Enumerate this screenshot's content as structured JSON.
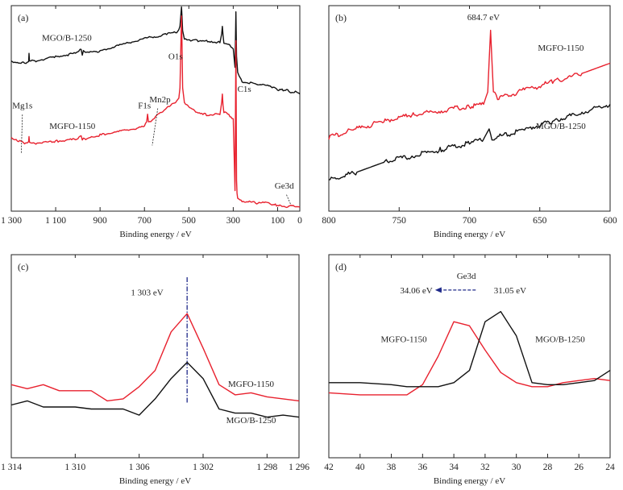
{
  "chart_data": [
    {
      "type": "line",
      "panel_label": "(a)",
      "xlabel": "Binding energy / eV",
      "ylabel": "",
      "xlim": [
        1300,
        0
      ],
      "xticks": [
        1300,
        1100,
        900,
        700,
        500,
        300,
        100,
        0
      ],
      "xtick_labels": [
        "1 300",
        "1 100",
        "900",
        "700",
        "500",
        "300",
        "100",
        "0"
      ],
      "ylim": [
        0,
        1
      ],
      "series": [
        {
          "name": "MGO/B-1250",
          "color": "#111111",
          "x": [
            1300,
            1240,
            1222,
            1220,
            1218,
            1200,
            1100,
            1000,
            985,
            980,
            975,
            960,
            900,
            800,
            700,
            600,
            560,
            545,
            540,
            533,
            531,
            528,
            520,
            480,
            420,
            360,
            352,
            349,
            346,
            342,
            320,
            300,
            292,
            288,
            285,
            283,
            280,
            260,
            200,
            150,
            120,
            90,
            60,
            40,
            20,
            0
          ],
          "y": [
            0.73,
            0.72,
            0.73,
            0.77,
            0.73,
            0.73,
            0.75,
            0.77,
            0.79,
            0.76,
            0.78,
            0.77,
            0.78,
            0.81,
            0.84,
            0.86,
            0.87,
            0.88,
            0.9,
            0.99,
            0.95,
            0.88,
            0.84,
            0.83,
            0.83,
            0.82,
            0.86,
            0.9,
            0.86,
            0.82,
            0.81,
            0.79,
            0.7,
            0.97,
            0.75,
            0.72,
            0.67,
            0.63,
            0.62,
            0.61,
            0.6,
            0.59,
            0.59,
            0.58,
            0.58,
            0.57
          ]
        },
        {
          "name": "MGFO-1150",
          "color": "#e8212e",
          "x": [
            1300,
            1240,
            1222,
            1220,
            1218,
            1200,
            1100,
            1000,
            985,
            980,
            975,
            960,
            900,
            800,
            700,
            690,
            686,
            682,
            660,
            640,
            600,
            560,
            545,
            540,
            533,
            531,
            528,
            520,
            480,
            420,
            360,
            352,
            349,
            346,
            342,
            320,
            300,
            292,
            288,
            285,
            283,
            280,
            260,
            200,
            150,
            120,
            90,
            60,
            40,
            20,
            0
          ],
          "y": [
            0.36,
            0.33,
            0.34,
            0.36,
            0.33,
            0.33,
            0.34,
            0.35,
            0.37,
            0.35,
            0.36,
            0.35,
            0.37,
            0.39,
            0.41,
            0.44,
            0.47,
            0.43,
            0.45,
            0.47,
            0.5,
            0.53,
            0.55,
            0.6,
            0.95,
            0.82,
            0.6,
            0.53,
            0.49,
            0.47,
            0.47,
            0.53,
            0.57,
            0.52,
            0.48,
            0.47,
            0.45,
            0.1,
            0.83,
            0.15,
            0.09,
            0.06,
            0.05,
            0.04,
            0.04,
            0.03,
            0.03,
            0.02,
            0.03,
            0.02,
            0.02
          ]
        }
      ],
      "annotations": [
        {
          "text": "MGO/B-1250",
          "x": 1050,
          "y": 0.83
        },
        {
          "text": "O1s",
          "x": 560,
          "y": 0.74
        },
        {
          "text": "C1s",
          "x": 250,
          "y": 0.58
        },
        {
          "text": "Mg1s",
          "x": 1250,
          "y": 0.5
        },
        {
          "text": "F1s",
          "x": 700,
          "y": 0.5
        },
        {
          "text": "Mn2p",
          "x": 630,
          "y": 0.53
        },
        {
          "text": "MGFO-1150",
          "x": 1025,
          "y": 0.4
        },
        {
          "text": "Ge3d",
          "x": 70,
          "y": 0.11
        }
      ]
    },
    {
      "type": "line",
      "panel_label": "(b)",
      "xlabel": "Binding energy / eV",
      "ylabel": "",
      "xlim": [
        800,
        600
      ],
      "xticks": [
        800,
        750,
        700,
        650,
        600
      ],
      "xtick_labels": [
        "800",
        "750",
        "700",
        "650",
        "600"
      ],
      "ylim": [
        0,
        1
      ],
      "series": [
        {
          "name": "MGFO-1150",
          "color": "#e8212e",
          "x": [
            800,
            780,
            760,
            740,
            720,
            700,
            690,
            687,
            685,
            683,
            680,
            660,
            640,
            620,
            600
          ],
          "y": [
            0.36,
            0.4,
            0.44,
            0.47,
            0.49,
            0.51,
            0.52,
            0.58,
            0.88,
            0.58,
            0.55,
            0.59,
            0.63,
            0.67,
            0.72
          ]
        },
        {
          "name": "MGO/B-1250",
          "color": "#111111",
          "x": [
            800,
            780,
            760,
            740,
            720,
            700,
            690,
            686,
            684,
            680,
            660,
            640,
            620,
            600
          ],
          "y": [
            0.15,
            0.19,
            0.24,
            0.27,
            0.3,
            0.33,
            0.35,
            0.4,
            0.35,
            0.36,
            0.4,
            0.44,
            0.48,
            0.52
          ]
        }
      ],
      "annotations": [
        {
          "text": "684.7 eV",
          "x": 690,
          "y": 0.93
        },
        {
          "text": "MGFO-1150",
          "x": 635,
          "y": 0.78
        },
        {
          "text": "MGO/B-1250",
          "x": 635,
          "y": 0.4
        }
      ]
    },
    {
      "type": "line",
      "panel_label": "(c)",
      "xlabel": "Binding energy / eV",
      "ylabel": "",
      "xlim": [
        1314,
        1296
      ],
      "xticks": [
        1314,
        1310,
        1306,
        1302,
        1298,
        1296
      ],
      "xtick_labels": [
        "1 314",
        "1 310",
        "1 306",
        "1 302",
        "1 298",
        "1 296"
      ],
      "ylim": [
        0,
        1
      ],
      "series": [
        {
          "name": "MGFO-1150",
          "color": "#e8212e",
          "x": [
            1314,
            1313,
            1312,
            1311,
            1310,
            1309,
            1308,
            1307,
            1306,
            1305,
            1304,
            1303,
            1302,
            1301,
            1300,
            1299,
            1298,
            1297,
            1296
          ],
          "y": [
            0.36,
            0.34,
            0.36,
            0.33,
            0.33,
            0.33,
            0.28,
            0.29,
            0.35,
            0.43,
            0.62,
            0.71,
            0.54,
            0.36,
            0.31,
            0.32,
            0.3,
            0.29,
            0.28
          ]
        },
        {
          "name": "MGO/B-1250",
          "color": "#111111",
          "x": [
            1314,
            1313,
            1312,
            1311,
            1310,
            1309,
            1308,
            1307,
            1306,
            1305,
            1304,
            1303,
            1302,
            1301,
            1300,
            1299,
            1298,
            1297,
            1296
          ],
          "y": [
            0.26,
            0.28,
            0.25,
            0.25,
            0.25,
            0.24,
            0.24,
            0.24,
            0.21,
            0.29,
            0.39,
            0.47,
            0.39,
            0.24,
            0.22,
            0.22,
            0.2,
            0.21,
            0.2
          ]
        }
      ],
      "reference_line": {
        "x": 1303,
        "color": "#1f2a8a"
      },
      "annotations": [
        {
          "text": "1 303 eV",
          "x": 1305.5,
          "y": 0.8
        },
        {
          "text": "MGFO-1150",
          "x": 1299,
          "y": 0.35
        },
        {
          "text": "MGO/B-1250",
          "x": 1299,
          "y": 0.17
        }
      ]
    },
    {
      "type": "line",
      "panel_label": "(d)",
      "xlabel": "Binding energy / eV",
      "ylabel": "",
      "xlim": [
        42,
        24
      ],
      "xticks": [
        42,
        40,
        38,
        36,
        34,
        32,
        30,
        28,
        26,
        24
      ],
      "xtick_labels": [
        "42",
        "40",
        "38",
        "36",
        "34",
        "32",
        "30",
        "28",
        "26",
        "24"
      ],
      "ylim": [
        0,
        1
      ],
      "series": [
        {
          "name": "MGFO-1150",
          "color": "#e8212e",
          "x": [
            42,
            40,
            38,
            37,
            36,
            35,
            34,
            33,
            32,
            31,
            30,
            29,
            28,
            27,
            26,
            25,
            24
          ],
          "y": [
            0.32,
            0.31,
            0.31,
            0.31,
            0.36,
            0.5,
            0.67,
            0.65,
            0.53,
            0.42,
            0.37,
            0.35,
            0.35,
            0.37,
            0.38,
            0.39,
            0.38
          ]
        },
        {
          "name": "MGO/B-1250",
          "color": "#111111",
          "x": [
            42,
            40,
            38,
            37,
            36,
            35,
            34,
            33,
            32,
            31,
            30,
            29,
            28,
            27,
            26,
            25,
            24
          ],
          "y": [
            0.37,
            0.37,
            0.36,
            0.35,
            0.35,
            0.35,
            0.37,
            0.43,
            0.67,
            0.72,
            0.6,
            0.37,
            0.36,
            0.36,
            0.37,
            0.38,
            0.43
          ]
        }
      ],
      "annotations": [
        {
          "text": "Ge3d",
          "x": 33.2,
          "y": 0.88
        },
        {
          "text": "34.06 eV",
          "x": 36.4,
          "y": 0.81
        },
        {
          "text": "31.05 eV",
          "x": 30.4,
          "y": 0.81
        },
        {
          "text": "MGFO-1150",
          "x": 37.2,
          "y": 0.57
        },
        {
          "text": "MGO/B-1250",
          "x": 27.2,
          "y": 0.57
        }
      ],
      "shift_arrow": {
        "from": 32.6,
        "to": 35.2,
        "y": 0.81,
        "color": "#1f2a8a"
      }
    }
  ]
}
